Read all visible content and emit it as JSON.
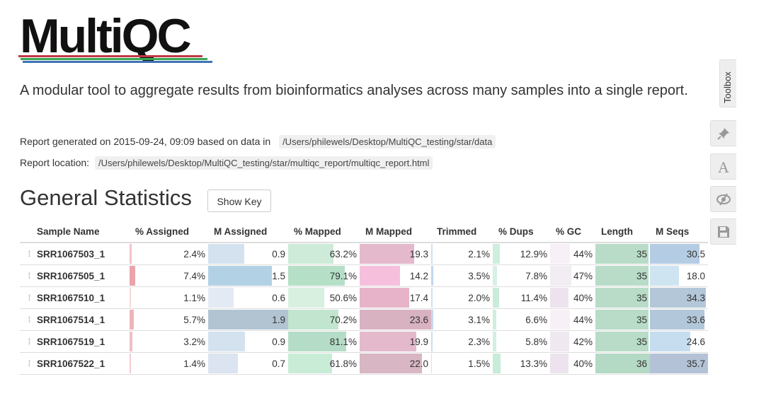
{
  "logo": {
    "text": "MultiQC"
  },
  "tagline": "A modular tool to aggregate results from bioinformatics analyses across many samples into a single report.",
  "meta": {
    "generated_prefix": "Report generated on 2015-09-24, 09:09 based on data in",
    "data_path": "/Users/philewels/Desktop/MultiQC_testing/star/data",
    "location_prefix": "Report location:",
    "report_path": "/Users/philewels/Desktop/MultiQC_testing/star/multiqc_report/multiqc_report.html"
  },
  "section": {
    "title": "General Statistics",
    "show_key_label": "Show Key"
  },
  "table": {
    "headers": [
      "Sample Name",
      "% Assigned",
      "M Assigned",
      "% Mapped",
      "M Mapped",
      "Trimmed",
      "% Dups",
      "% GC",
      "Length",
      "M Seqs"
    ],
    "rows": [
      {
        "sample": "SRR1067503_1",
        "values": [
          "2.4%",
          "0.9",
          "63.2%",
          "19.3",
          "2.1%",
          "12.9%",
          "44%",
          "35",
          "30.5"
        ]
      },
      {
        "sample": "SRR1067505_1",
        "values": [
          "7.4%",
          "1.5",
          "79.1%",
          "14.2",
          "3.5%",
          "7.8%",
          "47%",
          "35",
          "18.0"
        ]
      },
      {
        "sample": "SRR1067510_1",
        "values": [
          "1.1%",
          "0.6",
          "50.6%",
          "17.4",
          "2.0%",
          "11.4%",
          "40%",
          "35",
          "34.3"
        ]
      },
      {
        "sample": "SRR1067514_1",
        "values": [
          "5.7%",
          "1.9",
          "70.2%",
          "23.6",
          "3.1%",
          "6.6%",
          "44%",
          "35",
          "33.6"
        ]
      },
      {
        "sample": "SRR1067519_1",
        "values": [
          "3.2%",
          "0.9",
          "81.1%",
          "19.9",
          "2.3%",
          "5.8%",
          "42%",
          "35",
          "24.6"
        ]
      },
      {
        "sample": "SRR1067522_1",
        "values": [
          "1.4%",
          "0.7",
          "61.8%",
          "22.0",
          "1.5%",
          "13.3%",
          "40%",
          "36",
          "35.7"
        ]
      }
    ],
    "bar_fractions": [
      [
        0.024,
        0.45,
        0.632,
        0.765,
        0.021,
        0.129,
        0.44,
        0.97,
        0.855
      ],
      [
        0.074,
        0.8,
        0.791,
        0.565,
        0.035,
        0.078,
        0.47,
        0.97,
        0.505
      ],
      [
        0.011,
        0.32,
        0.506,
        0.69,
        0.02,
        0.114,
        0.4,
        0.97,
        0.96
      ],
      [
        0.057,
        1.0,
        0.702,
        1.0,
        0.031,
        0.066,
        0.44,
        0.97,
        0.94
      ],
      [
        0.032,
        0.46,
        0.811,
        0.79,
        0.023,
        0.058,
        0.42,
        0.97,
        0.69
      ],
      [
        0.014,
        0.37,
        0.618,
        0.87,
        0.015,
        0.133,
        0.4,
        1.0,
        1.0
      ]
    ],
    "bar_colors": [
      [
        "#f2c4c8",
        "#d3e2ee",
        "#cdebd8",
        "#e4b9cb",
        "#d2e0f0",
        "#cfeedd",
        "#f7f1f7",
        "#b8dcc8",
        "#b5cde4"
      ],
      [
        "#eaa3ab",
        "#b3d1e5",
        "#b5dfc7",
        "#f6c0dc",
        "#c2d6ef",
        "#d6f1e3",
        "#f2ecf3",
        "#b8dcc8",
        "#cfe4f1"
      ],
      [
        "#f6d8da",
        "#e4eaf4",
        "#d8f0e0",
        "#e7b3c9",
        "#d2e0f0",
        "#c9ecda",
        "#ede3ee",
        "#b8dcc8",
        "#b3c7d9"
      ],
      [
        "#eeb4ba",
        "#b2c4d2",
        "#c2e5cf",
        "#d9b2c2",
        "#c7d9ef",
        "#cfeedd",
        "#f7f1f7",
        "#b8dcc8",
        "#b2c7da"
      ],
      [
        "#f0bfc5",
        "#d3e2ee",
        "#b5dcc6",
        "#e4b9cb",
        "#cddcf0",
        "#d2efe0",
        "#efe8f0",
        "#b8dcc8",
        "#c6ddef"
      ],
      [
        "#f3cdd1",
        "#dbe4f0",
        "#c9ecd7",
        "#d8b6c4",
        "#d6e3f1",
        "#c7ecd8",
        "#ede3ee",
        "#b4d9c5",
        "#b3c2d6"
      ]
    ]
  },
  "toolbox": {
    "label": "Toolbox",
    "buttons": [
      "pin-icon",
      "font-icon",
      "eye-slash-icon",
      "save-icon"
    ]
  }
}
